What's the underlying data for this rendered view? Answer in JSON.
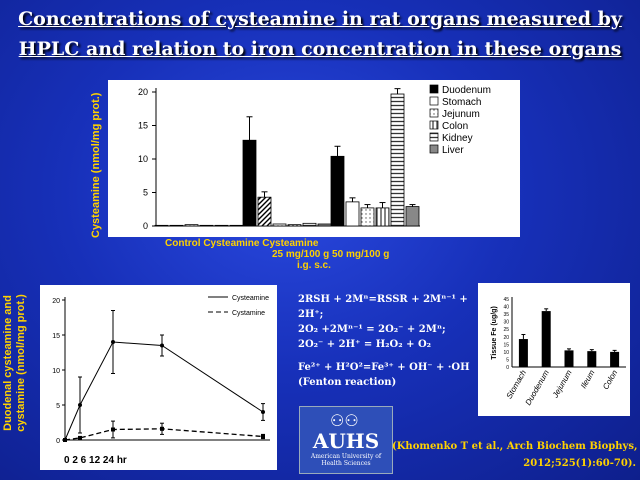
{
  "slide": {
    "title_line1": "Concentrations of cysteamine in rat organs measured by",
    "title_line2": "HPLC and relation to iron concentration in these organs",
    "equations": [
      "2RSH + 2Mⁿ=RSSR + 2Mⁿ⁻¹ +",
      "2H⁺;",
      "2O₂ +2Mⁿ⁻¹ = 2O₂⁻ + 2Mⁿ;",
      "2O₂⁻ + 2H⁺ = H₂O₂ + O₂",
      "",
      "Fe²⁺ + H²O²=Fe³⁺ + OH⁻ + ·OH",
      "(Fenton reaction)"
    ],
    "logo_text": "AUHS",
    "logo_subtext": "American University of Health Sciences",
    "citation_line1": "(Khomenko T et al., Arch Biochem Biophys,",
    "citation_line2": "2012;525(1):60-70)."
  },
  "chart_data": [
    {
      "type": "bar",
      "ylabel": "Cysteamine (nmol/mg prot.)",
      "ylim": [
        0,
        20
      ],
      "yticks": [
        0,
        5,
        10,
        15,
        20
      ],
      "group_labels": [
        "Control",
        "Cysteamine",
        "Cysteamine"
      ],
      "group_sublabels": [
        "",
        "25 mg/100 g",
        "50 mg/100 g"
      ],
      "xlabel_note": "i.g. s.c.",
      "legend_position": "right",
      "series": [
        {
          "name": "Duodenum",
          "values": [
            0.1,
            12.8,
            10.4
          ],
          "errors": [
            0.0,
            3.5,
            1.5
          ]
        },
        {
          "name": "Stomach",
          "values": [
            0.1,
            4.3,
            3.6
          ],
          "errors": [
            0.0,
            0.8,
            0.6
          ]
        },
        {
          "name": "Jejunum",
          "values": [
            0.2,
            0.3,
            2.7
          ],
          "errors": [
            0.0,
            0.0,
            0.5
          ]
        },
        {
          "name": "Colon",
          "values": [
            0.1,
            0.2,
            2.7
          ],
          "errors": [
            0.0,
            0.0,
            0.8
          ]
        },
        {
          "name": "Kidney",
          "values": [
            0.1,
            0.4,
            19.7
          ],
          "errors": [
            0.0,
            0.0,
            0.8
          ]
        },
        {
          "name": "Liver",
          "values": [
            0.1,
            0.3,
            2.9
          ],
          "errors": [
            0.0,
            0.0,
            0.3
          ]
        }
      ]
    },
    {
      "type": "line",
      "ylabel": "Duodenal cysteamine and cystamine (nmol/mg prot.)",
      "xlabel": "0 2 6 12 24 hr",
      "x": [
        0,
        2,
        6,
        12,
        24
      ],
      "ylim": [
        0,
        20
      ],
      "yticks": [
        0,
        5,
        10,
        15,
        20
      ],
      "legend_position": "top-right",
      "series": [
        {
          "name": "Cysteamine",
          "values": [
            0,
            5,
            14,
            13.5,
            4
          ],
          "errors": [
            0,
            4,
            4.5,
            1.5,
            1.2
          ]
        },
        {
          "name": "Cystamine",
          "values": [
            0,
            0.3,
            1.5,
            1.6,
            0.5
          ],
          "errors": [
            0,
            0.2,
            1.2,
            0.8,
            0.3
          ]
        }
      ]
    },
    {
      "type": "bar",
      "ylabel": "Tissue Fe (ug/g)",
      "ylim": [
        0,
        45
      ],
      "yticks": [
        0,
        5,
        10,
        15,
        20,
        25,
        30,
        35,
        40,
        45
      ],
      "categories": [
        "Stomach",
        "Duodenum",
        "Jejunum",
        "Ileum",
        "Colon"
      ],
      "values": [
        18.5,
        37,
        11,
        10.5,
        10
      ],
      "errors": [
        3,
        1.5,
        1,
        1,
        1
      ]
    }
  ]
}
